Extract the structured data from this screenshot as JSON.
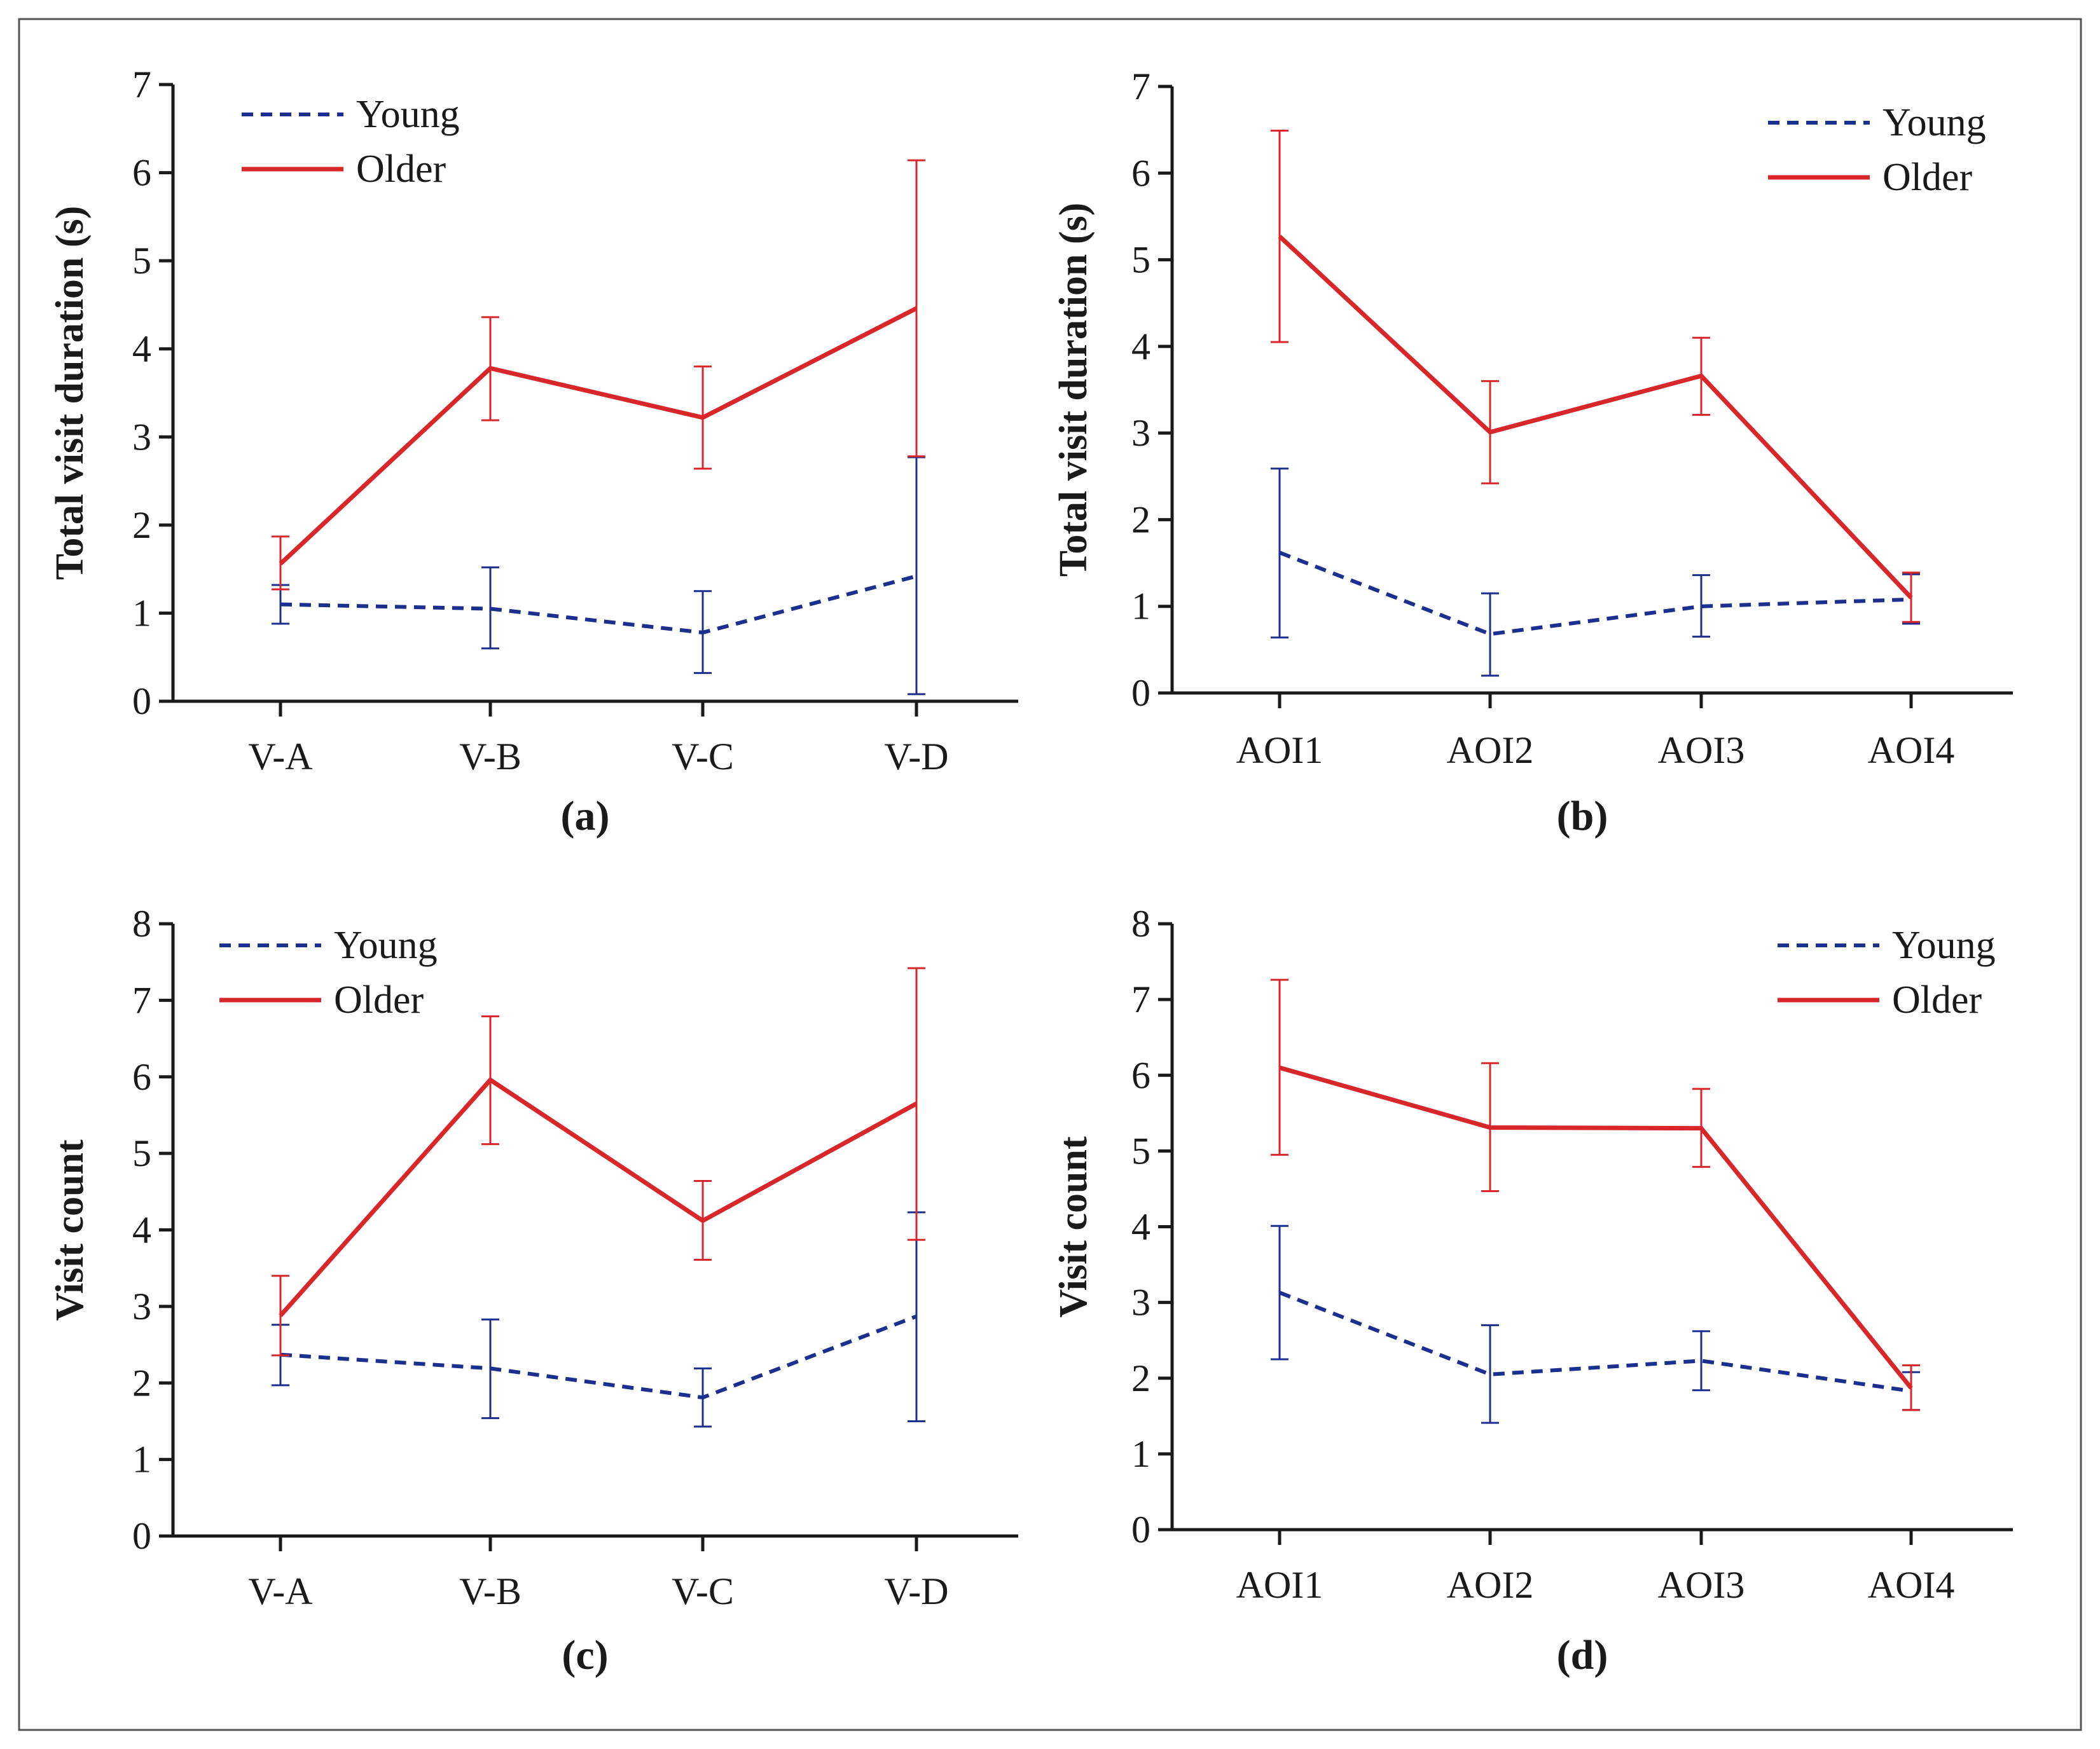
{
  "colors": {
    "young": "#1c2f8f",
    "older": "#d8262b"
  },
  "chart_data": [
    {
      "type": "line",
      "panel": "(a)",
      "ylabel": "Total visit duration (s)",
      "xlabel": "",
      "ylim": [
        0,
        7
      ],
      "yticks": [
        0,
        1,
        2,
        3,
        4,
        5,
        6,
        7
      ],
      "categories": [
        "V-A",
        "V-B",
        "V-C",
        "V-D"
      ],
      "legend_position": "top-left",
      "series": [
        {
          "name": "Young",
          "style": "dashed",
          "values": [
            1.1,
            1.05,
            0.78,
            1.42
          ],
          "err_low": [
            0.88,
            0.6,
            0.32,
            0.08
          ],
          "err_high": [
            1.32,
            1.52,
            1.25,
            2.77
          ]
        },
        {
          "name": "Older",
          "style": "solid",
          "values": [
            1.56,
            3.78,
            3.22,
            4.46
          ],
          "err_low": [
            1.27,
            3.19,
            2.64,
            2.78
          ],
          "err_high": [
            1.87,
            4.36,
            3.8,
            6.14
          ]
        }
      ]
    },
    {
      "type": "line",
      "panel": "(b)",
      "ylabel": "Total visit duration (s)",
      "xlabel": "",
      "ylim": [
        0,
        7
      ],
      "yticks": [
        0,
        1,
        2,
        3,
        4,
        5,
        6,
        7
      ],
      "categories": [
        "AOI1",
        "AOI2",
        "AOI3",
        "AOI4"
      ],
      "legend_position": "top-right",
      "series": [
        {
          "name": "Young",
          "style": "dashed",
          "values": [
            1.62,
            0.68,
            1.0,
            1.08
          ],
          "err_low": [
            0.64,
            0.2,
            0.65,
            0.8
          ],
          "err_high": [
            2.59,
            1.15,
            1.36,
            1.37
          ]
        },
        {
          "name": "Older",
          "style": "solid",
          "values": [
            5.27,
            3.01,
            3.66,
            1.1
          ],
          "err_low": [
            4.05,
            2.42,
            3.21,
            0.82
          ],
          "err_high": [
            6.49,
            3.6,
            4.1,
            1.39
          ]
        }
      ]
    },
    {
      "type": "line",
      "panel": "(c)",
      "ylabel": "Visit count",
      "xlabel": "",
      "ylim": [
        0,
        8
      ],
      "yticks": [
        0,
        1,
        2,
        3,
        4,
        5,
        6,
        7,
        8
      ],
      "categories": [
        "V-A",
        "V-B",
        "V-C",
        "V-D"
      ],
      "legend_position": "top-left",
      "series": [
        {
          "name": "Young",
          "style": "dashed",
          "values": [
            2.37,
            2.19,
            1.81,
            2.87
          ],
          "err_low": [
            1.97,
            1.54,
            1.43,
            1.5
          ],
          "err_high": [
            2.76,
            2.83,
            2.19,
            4.23
          ]
        },
        {
          "name": "Older",
          "style": "solid",
          "values": [
            2.88,
            5.96,
            4.12,
            5.65
          ],
          "err_low": [
            2.36,
            5.12,
            3.61,
            3.87
          ],
          "err_high": [
            3.4,
            6.79,
            4.64,
            7.42
          ]
        }
      ]
    },
    {
      "type": "line",
      "panel": "(d)",
      "ylabel": "Visit count",
      "xlabel": "",
      "ylim": [
        0,
        8
      ],
      "yticks": [
        0,
        1,
        2,
        3,
        4,
        5,
        6,
        7,
        8
      ],
      "categories": [
        "AOI1",
        "AOI2",
        "AOI3",
        "AOI4"
      ],
      "legend_position": "top-right",
      "series": [
        {
          "name": "Young",
          "style": "dashed",
          "values": [
            3.13,
            2.05,
            2.23,
            1.83
          ],
          "err_low": [
            2.25,
            1.41,
            1.84,
            1.58
          ],
          "err_high": [
            4.01,
            2.7,
            2.62,
            2.08
          ]
        },
        {
          "name": "Older",
          "style": "solid",
          "values": [
            6.1,
            5.31,
            5.3,
            1.87
          ],
          "err_low": [
            4.95,
            4.47,
            4.79,
            1.58
          ],
          "err_high": [
            7.26,
            6.16,
            5.82,
            2.17
          ]
        }
      ]
    }
  ]
}
